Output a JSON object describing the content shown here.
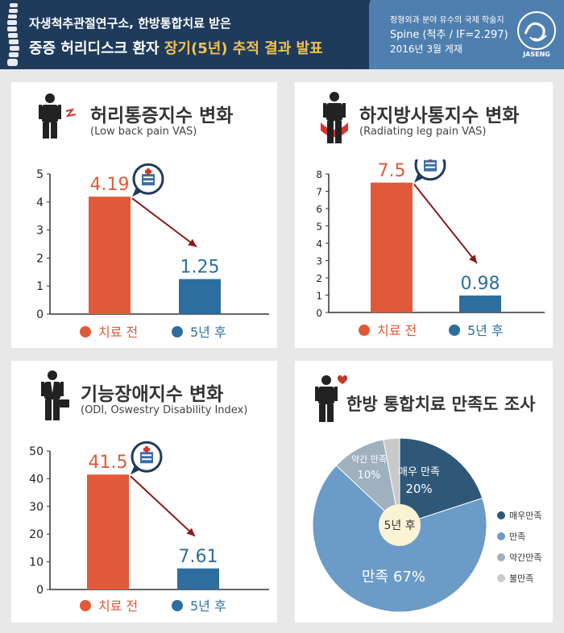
{
  "header": {
    "line1": "자생척추관절연구소, 한방통합치료 받은",
    "line2_a": "중증 허리디스크 환자 ",
    "line2_b": "장기(5년) 추적 결과 발표",
    "journal_line1": "정형외과 분야 유수의 국제 학술지",
    "journal_line2": "Spine (척추 / IF=2.297)",
    "journal_line3": "2016년 3월 게재",
    "logo_text": "JASENG",
    "colors": {
      "dark": "#1f3b5c",
      "light": "#4f7fae",
      "highlight": "#f2c14e"
    }
  },
  "panels": {
    "lbp": {
      "title": "허리통증지수 변화",
      "subtitle": "(Low back pain VAS)"
    },
    "leg": {
      "title": "하지방사통지수 변화",
      "subtitle": "(Radiating leg pain VAS)"
    },
    "odi": {
      "title": "기능장애지수 변화",
      "subtitle": "(ODI, Oswestry Disability Index)"
    },
    "sat": {
      "title": "한방 통합치료 만족도 조사"
    }
  },
  "chart_data": [
    {
      "type": "bar",
      "title": "허리통증지수 변화",
      "subtitle": "(Low back pain VAS)",
      "categories": [
        "치료 전",
        "5년 후"
      ],
      "values": [
        4.19,
        1.25
      ],
      "value_labels": [
        "4.19",
        "1.25"
      ],
      "ylim": [
        0,
        5
      ],
      "yticks": [
        "0",
        "1",
        "2",
        "3",
        "4",
        "5"
      ],
      "colors": [
        "#e05a3a",
        "#2e6e9e"
      ],
      "legend": [
        "치료 전",
        "5년 후"
      ],
      "legend_placement": "bottom",
      "grid": false
    },
    {
      "type": "bar",
      "title": "하지방사통지수 변화",
      "subtitle": "(Radiating leg pain VAS)",
      "categories": [
        "치료 전",
        "5년 후"
      ],
      "values": [
        7.5,
        0.98
      ],
      "value_labels": [
        "7.5",
        "0.98"
      ],
      "ylim": [
        0,
        8
      ],
      "yticks": [
        "0",
        "1",
        "2",
        "3",
        "4",
        "5",
        "6",
        "7",
        "8"
      ],
      "colors": [
        "#e05a3a",
        "#2e6e9e"
      ],
      "legend": [
        "치료 전",
        "5년 후"
      ],
      "legend_placement": "bottom",
      "grid": false
    },
    {
      "type": "bar",
      "title": "기능장애지수 변화",
      "subtitle": "(ODI, Oswestry Disability Index)",
      "categories": [
        "치료 전",
        "5년 후"
      ],
      "values": [
        41.5,
        7.61
      ],
      "value_labels": [
        "41.5",
        "7.61"
      ],
      "ylim": [
        0,
        50
      ],
      "yticks": [
        "0",
        "10",
        "20",
        "30",
        "40",
        "50"
      ],
      "colors": [
        "#e05a3a",
        "#2e6e9e"
      ],
      "legend": [
        "치료 전",
        "5년 후"
      ],
      "legend_placement": "bottom",
      "grid": false
    },
    {
      "type": "pie",
      "title": "한방 통합치료 만족도 조사",
      "center_label": "5년 후",
      "slices": [
        {
          "label": "매우만족",
          "slice_label": "매우 만족",
          "value": 20,
          "pct": "20%",
          "color": "#2f5878"
        },
        {
          "label": "만족",
          "slice_label": "만족",
          "value": 67,
          "pct": "67%",
          "color": "#6b9bc7"
        },
        {
          "label": "약간만족",
          "slice_label": "약간 만족",
          "value": 10,
          "pct": "10%",
          "color": "#9fb0bf"
        },
        {
          "label": "불만족",
          "slice_label": "",
          "value": 3,
          "pct": "",
          "color": "#c9c9c9"
        }
      ],
      "legend_placement": "right"
    }
  ]
}
